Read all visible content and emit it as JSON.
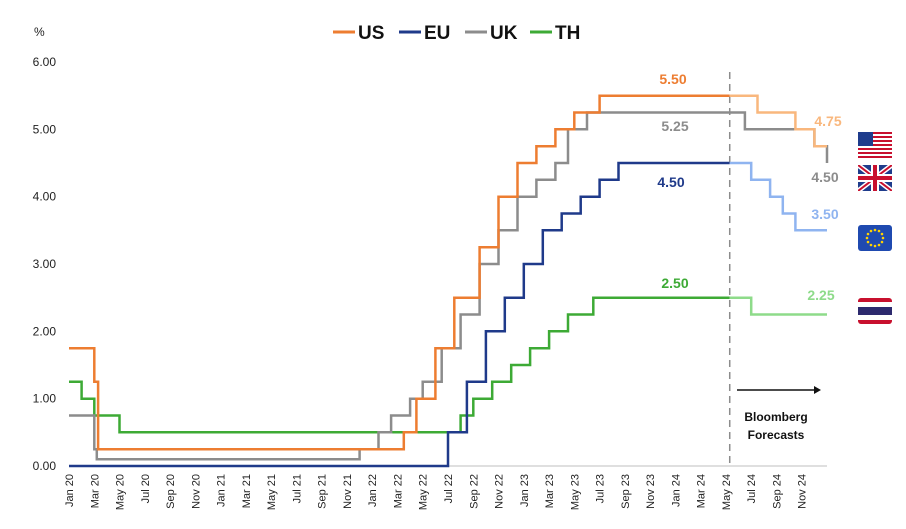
{
  "chart_data": {
    "type": "line",
    "step": true,
    "title": "",
    "xlabel": "",
    "ylabel": "%",
    "ylim": [
      0,
      6
    ],
    "yticks": [
      "0.00",
      "1.00",
      "2.00",
      "3.00",
      "4.00",
      "5.00",
      "6.00"
    ],
    "xticks": [
      "Jan 20",
      "Mar 20",
      "May 20",
      "Jul 20",
      "Sep 20",
      "Nov 20",
      "Jan 21",
      "Mar 21",
      "May 21",
      "Jul 21",
      "Sep 21",
      "Nov 21",
      "Jan 22",
      "Mar 22",
      "May 22",
      "Jul 22",
      "Sep 22",
      "Nov 22",
      "Jan 23",
      "Mar 23",
      "May 23",
      "Jul 23",
      "Sep 23",
      "Nov 23",
      "Jan 24",
      "Mar 24",
      "May 24",
      "Jul 24",
      "Sep 24",
      "Nov 24"
    ],
    "x_range_months": [
      0,
      60
    ],
    "forecast_start": "May 24",
    "forecast_text": "Bloomberg Forecasts",
    "legend": {
      "position": "top",
      "entries": [
        "US",
        "EU",
        "UK",
        "TH"
      ]
    },
    "series": [
      {
        "name": "US",
        "color": "#ED7D31",
        "forecast_color": "#F9B77D",
        "end_label": "5.50",
        "forecast_label": "4.75",
        "points": [
          [
            0,
            1.75
          ],
          [
            2,
            1.75
          ],
          [
            2,
            1.25
          ],
          [
            2.3,
            1.25
          ],
          [
            2.3,
            0.25
          ],
          [
            26.5,
            0.25
          ],
          [
            26.5,
            0.5
          ],
          [
            27.5,
            0.5
          ],
          [
            27.5,
            1.0
          ],
          [
            29,
            1.0
          ],
          [
            29,
            1.75
          ],
          [
            30.5,
            1.75
          ],
          [
            30.5,
            2.5
          ],
          [
            32.5,
            2.5
          ],
          [
            32.5,
            3.25
          ],
          [
            34,
            3.25
          ],
          [
            34,
            4.0
          ],
          [
            35.5,
            4.0
          ],
          [
            35.5,
            4.5
          ],
          [
            37,
            4.5
          ],
          [
            37,
            4.75
          ],
          [
            38.5,
            4.75
          ],
          [
            38.5,
            5.0
          ],
          [
            40,
            5.0
          ],
          [
            40,
            5.25
          ],
          [
            42,
            5.25
          ],
          [
            42,
            5.5
          ],
          [
            52.3,
            5.5
          ]
        ],
        "forecast": [
          [
            52.3,
            5.5
          ],
          [
            54.5,
            5.5
          ],
          [
            54.5,
            5.25
          ],
          [
            57.5,
            5.25
          ],
          [
            57.5,
            5.0
          ],
          [
            59,
            5.0
          ],
          [
            59,
            4.75
          ],
          [
            60,
            4.75
          ]
        ]
      },
      {
        "name": "EU",
        "color": "#1F3A8A",
        "forecast_color": "#8FB4F0",
        "end_label": "4.50",
        "forecast_label": "3.50",
        "points": [
          [
            0,
            0
          ],
          [
            30,
            0
          ],
          [
            30,
            0.5
          ],
          [
            31.5,
            0.5
          ],
          [
            31.5,
            1.25
          ],
          [
            33,
            1.25
          ],
          [
            33,
            2.0
          ],
          [
            34.5,
            2.0
          ],
          [
            34.5,
            2.5
          ],
          [
            36,
            2.5
          ],
          [
            36,
            3.0
          ],
          [
            37.5,
            3.0
          ],
          [
            37.5,
            3.5
          ],
          [
            39,
            3.5
          ],
          [
            39,
            3.75
          ],
          [
            40.5,
            3.75
          ],
          [
            40.5,
            4.0
          ],
          [
            42,
            4.0
          ],
          [
            42,
            4.25
          ],
          [
            43.5,
            4.25
          ],
          [
            43.5,
            4.5
          ],
          [
            52.3,
            4.5
          ]
        ],
        "forecast": [
          [
            52.3,
            4.5
          ],
          [
            54,
            4.5
          ],
          [
            54,
            4.25
          ],
          [
            55.5,
            4.25
          ],
          [
            55.5,
            4.0
          ],
          [
            56.5,
            4.0
          ],
          [
            56.5,
            3.75
          ],
          [
            57.5,
            3.75
          ],
          [
            57.5,
            3.5
          ],
          [
            60,
            3.5
          ]
        ]
      },
      {
        "name": "UK",
        "color": "#8C8C8C",
        "forecast_color": "#8C8C8C",
        "end_label": "5.25",
        "forecast_label": "4.50",
        "points": [
          [
            0,
            0.75
          ],
          [
            2,
            0.75
          ],
          [
            2,
            0.25
          ],
          [
            2.2,
            0.25
          ],
          [
            2.2,
            0.1
          ],
          [
            23,
            0.1
          ],
          [
            23,
            0.25
          ],
          [
            24.5,
            0.25
          ],
          [
            24.5,
            0.5
          ],
          [
            25.5,
            0.5
          ],
          [
            25.5,
            0.75
          ],
          [
            27,
            0.75
          ],
          [
            27,
            1.0
          ],
          [
            28,
            1.0
          ],
          [
            28,
            1.25
          ],
          [
            29.5,
            1.25
          ],
          [
            29.5,
            1.75
          ],
          [
            31,
            1.75
          ],
          [
            31,
            2.25
          ],
          [
            32.5,
            2.25
          ],
          [
            32.5,
            3.0
          ],
          [
            34,
            3.0
          ],
          [
            34,
            3.5
          ],
          [
            35.5,
            3.5
          ],
          [
            35.5,
            4.0
          ],
          [
            37,
            4.0
          ],
          [
            37,
            4.25
          ],
          [
            38.5,
            4.25
          ],
          [
            38.5,
            4.5
          ],
          [
            39.5,
            4.5
          ],
          [
            39.5,
            5.0
          ],
          [
            41,
            5.0
          ],
          [
            41,
            5.25
          ],
          [
            52.3,
            5.25
          ]
        ],
        "forecast": [
          [
            52.3,
            5.25
          ],
          [
            53.5,
            5.25
          ],
          [
            53.5,
            5.0
          ],
          [
            59,
            5.0
          ],
          [
            59,
            4.75
          ],
          [
            60,
            4.75
          ],
          [
            60,
            4.5
          ]
        ]
      },
      {
        "name": "TH",
        "color": "#3DAA35",
        "forecast_color": "#8EDB8A",
        "end_label": "2.50",
        "forecast_label": "2.25",
        "points": [
          [
            0,
            1.25
          ],
          [
            1,
            1.25
          ],
          [
            1,
            1.0
          ],
          [
            2,
            1.0
          ],
          [
            2,
            0.75
          ],
          [
            4,
            0.75
          ],
          [
            4,
            0.5
          ],
          [
            31,
            0.5
          ],
          [
            31,
            0.75
          ],
          [
            32,
            0.75
          ],
          [
            32,
            1.0
          ],
          [
            33.5,
            1.0
          ],
          [
            33.5,
            1.25
          ],
          [
            35,
            1.25
          ],
          [
            35,
            1.5
          ],
          [
            36.5,
            1.5
          ],
          [
            36.5,
            1.75
          ],
          [
            38,
            1.75
          ],
          [
            38,
            2.0
          ],
          [
            39.5,
            2.0
          ],
          [
            39.5,
            2.25
          ],
          [
            41.5,
            2.25
          ],
          [
            41.5,
            2.5
          ],
          [
            52.3,
            2.5
          ]
        ],
        "forecast": [
          [
            52.3,
            2.5
          ],
          [
            54,
            2.5
          ],
          [
            54,
            2.25
          ],
          [
            60,
            2.25
          ]
        ]
      }
    ]
  },
  "flags": [
    "us-flag-icon",
    "uk-flag-icon",
    "eu-flag-icon",
    "th-flag-icon"
  ]
}
